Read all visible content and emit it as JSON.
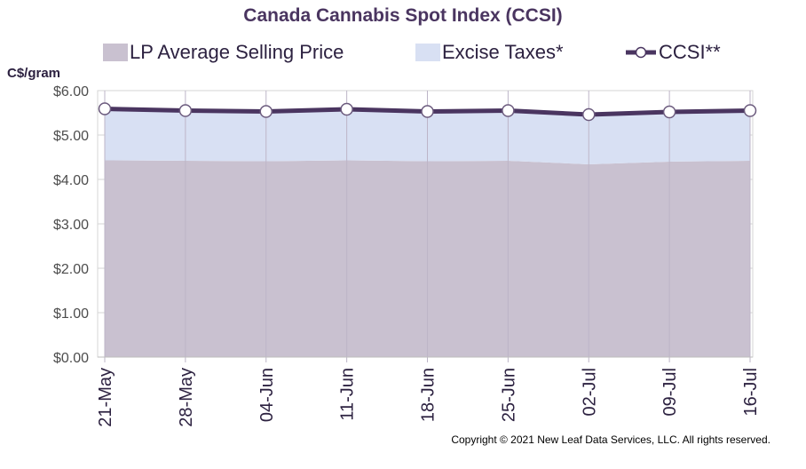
{
  "chart_data": {
    "type": "area",
    "title": "Canada Cannabis Spot Index (CCSI)",
    "ylabel": "C$/gram",
    "xlabel": "",
    "categories": [
      "21-May",
      "28-May",
      "04-Jun",
      "11-Jun",
      "18-Jun",
      "25-Jun",
      "02-Jul",
      "09-Jul",
      "16-Jul"
    ],
    "y_ticks": [
      "$0.00",
      "$1.00",
      "$2.00",
      "$3.00",
      "$4.00",
      "$5.00",
      "$6.00"
    ],
    "ylim": [
      0,
      6
    ],
    "grid": true,
    "legend_position": "top",
    "series": [
      {
        "name": "LP Average Selling Price",
        "kind": "stacked-area",
        "color": "#c9c1d0",
        "values": [
          4.43,
          4.42,
          4.41,
          4.43,
          4.41,
          4.42,
          4.34,
          4.4,
          4.42
        ]
      },
      {
        "name": "Excise Taxes*",
        "kind": "stacked-area",
        "color": "#d8e0f3",
        "values": [
          1.16,
          1.13,
          1.12,
          1.15,
          1.12,
          1.13,
          1.12,
          1.12,
          1.13
        ]
      },
      {
        "name": "CCSI**",
        "kind": "line-markers",
        "color": "#4a3560",
        "values": [
          5.59,
          5.55,
          5.53,
          5.58,
          5.53,
          5.55,
          5.46,
          5.52,
          5.55
        ]
      }
    ]
  },
  "copyright": "Copyright © 2021 New Leaf Data Services, LLC. All rights reserved."
}
